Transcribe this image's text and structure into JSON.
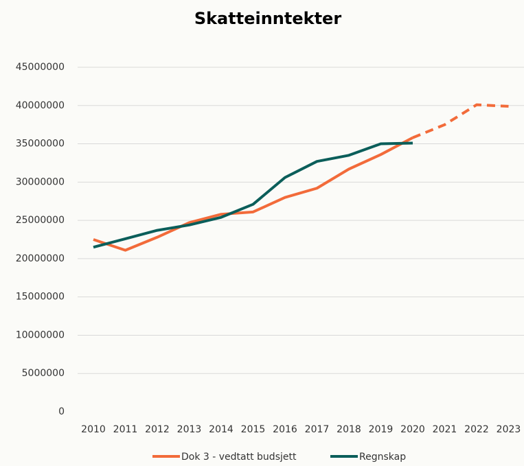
{
  "chart_data": {
    "type": "line",
    "title": "Skatteinntekter",
    "categories": [
      "2010",
      "2011",
      "2012",
      "2013",
      "2014",
      "2015",
      "2016",
      "2017",
      "2018",
      "2019",
      "2020",
      "2021",
      "2022",
      "2023"
    ],
    "series": [
      {
        "name": "Dok 3 - vedtatt budsjett",
        "color": "#f26b3a",
        "dash_start": "2020",
        "values": [
          22500000,
          21100000,
          22800000,
          24700000,
          25800000,
          26100000,
          28000000,
          29200000,
          31700000,
          33600000,
          35800000,
          37500000,
          40100000,
          39900000
        ]
      },
      {
        "name": "Regnskap",
        "color": "#0b5e5a",
        "values": [
          21500000,
          22600000,
          23700000,
          24400000,
          25400000,
          27100000,
          30600000,
          32700000,
          33500000,
          35000000,
          35100000,
          null,
          null,
          null
        ]
      }
    ],
    "ylim": [
      0,
      45000000
    ],
    "yticks": [
      0,
      5000000,
      10000000,
      15000000,
      20000000,
      25000000,
      30000000,
      35000000,
      40000000,
      45000000
    ],
    "grid": true,
    "legend": "bottom"
  }
}
